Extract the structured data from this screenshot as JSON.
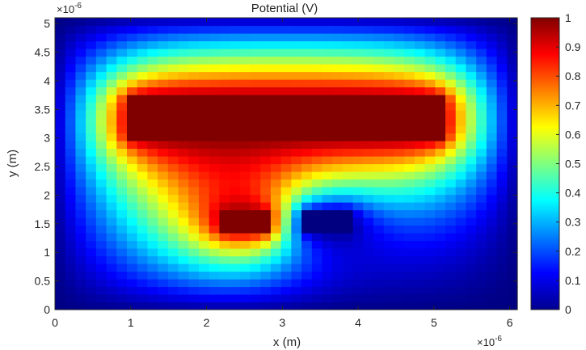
{
  "chart_data": {
    "type": "heatmap",
    "title": "Potential (V)",
    "xlabel": "x (m)",
    "ylabel": "y (m)",
    "x_exponent": "×10",
    "x_exponent_power": "-6",
    "y_exponent": "×10",
    "y_exponent_power": "-6",
    "xlim": [
      0,
      6.1
    ],
    "ylim": [
      0,
      5.1
    ],
    "xticks": [
      0,
      1,
      2,
      3,
      4,
      5,
      6
    ],
    "xtick_labels": [
      "0",
      "1",
      "2",
      "3",
      "4",
      "5",
      "6"
    ],
    "yticks": [
      0,
      0.5,
      1,
      1.5,
      2,
      2.5,
      3,
      3.5,
      4,
      4.5,
      5
    ],
    "ytick_labels": [
      "0",
      "0.5",
      "1",
      "1.5",
      "2",
      "2.5",
      "3",
      "3.5",
      "4",
      "4.5",
      "5"
    ],
    "colormap": "jet",
    "clim": [
      0,
      1
    ],
    "colorbar_ticks": [
      0,
      0.1,
      0.2,
      0.3,
      0.4,
      0.5,
      0.6,
      0.7,
      0.8,
      0.9,
      1
    ],
    "colorbar_tick_labels": [
      "0",
      "0.1",
      "0.2",
      "0.3",
      "0.4",
      "0.5",
      "0.6",
      "0.7",
      "0.8",
      "0.9",
      "1"
    ],
    "grid_nx": 45,
    "grid_ny": 38,
    "boundary_value": 0,
    "electrodes": [
      {
        "x": [
          1.0,
          5.1
        ],
        "y": [
          3.0,
          3.8
        ],
        "value": 1
      },
      {
        "x": [
          2.2,
          2.8
        ],
        "y": [
          1.3,
          1.7
        ],
        "value": 1
      },
      {
        "x": [
          3.3,
          3.9
        ],
        "y": [
          1.3,
          1.7
        ],
        "value": 0
      }
    ]
  }
}
